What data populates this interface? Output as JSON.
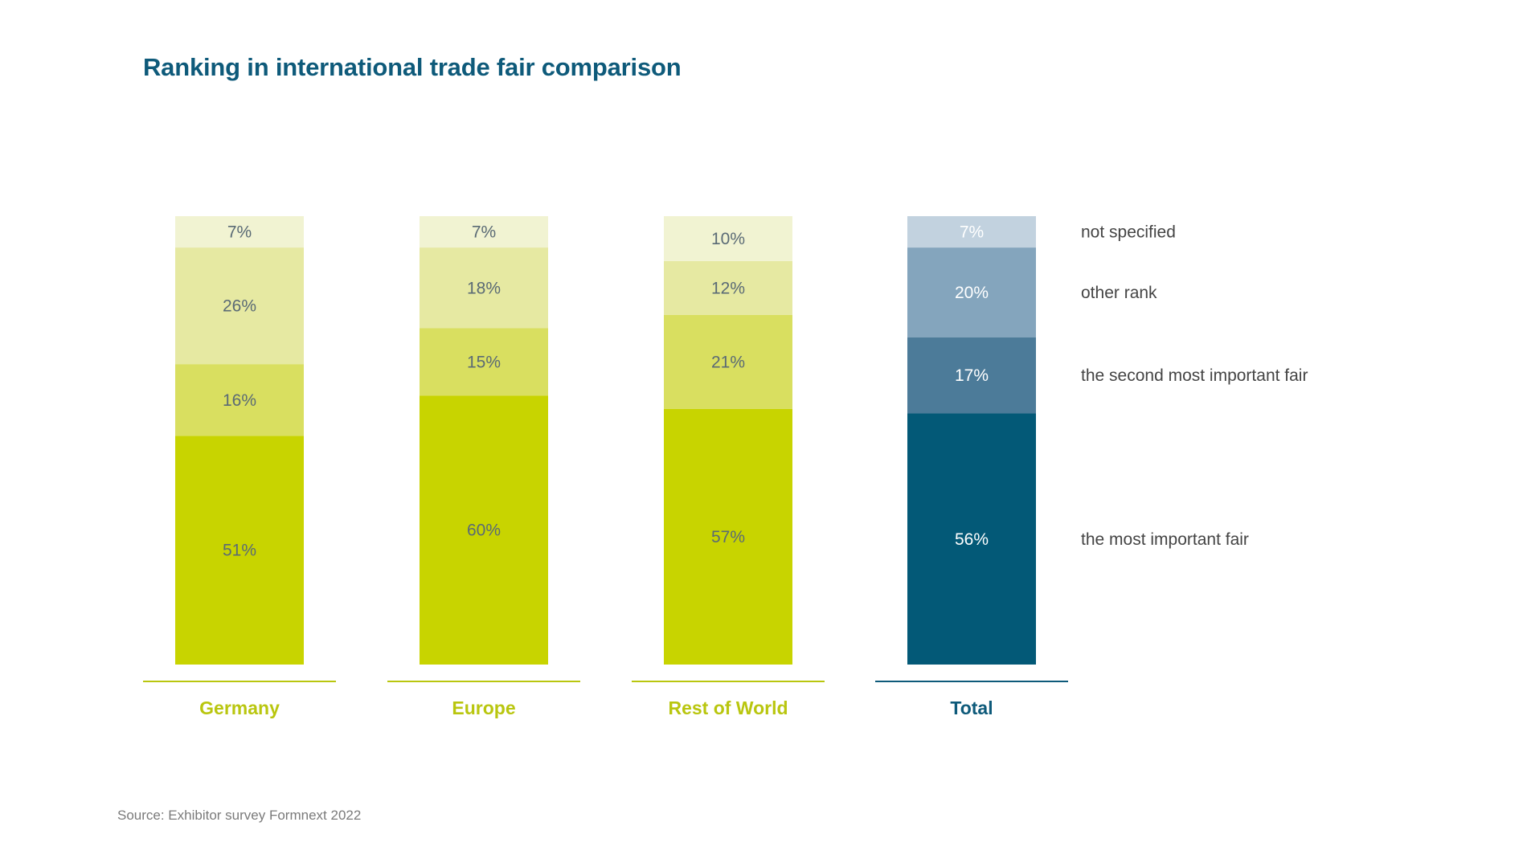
{
  "title": "Ranking in international trade fair comparison",
  "source": "Source: Exhibitor survey Formnext 2022",
  "chart_data": {
    "type": "bar",
    "stacked": true,
    "unit": "%",
    "categories": [
      "Germany",
      "Europe",
      "Rest of World",
      "Total"
    ],
    "series": [
      {
        "name": "the most important fair",
        "values": [
          51,
          60,
          57,
          56
        ]
      },
      {
        "name": "the second most important fair",
        "values": [
          16,
          15,
          21,
          17
        ]
      },
      {
        "name": "other rank",
        "values": [
          26,
          18,
          12,
          20
        ]
      },
      {
        "name": "not specified",
        "values": [
          7,
          7,
          10,
          7
        ]
      }
    ],
    "value_labels": [
      [
        "51%",
        "60%",
        "57%",
        "56%"
      ],
      [
        "16%",
        "15%",
        "21%",
        "17%"
      ],
      [
        "26%",
        "18%",
        "12%",
        "20%"
      ],
      [
        "7%",
        "7%",
        "10%",
        "7%"
      ]
    ],
    "colors": {
      "Germany": [
        "#c8d400",
        "#d9df60",
        "#e6e9a2",
        "#f1f3d2"
      ],
      "Europe": [
        "#c8d400",
        "#d9df60",
        "#e6e9a2",
        "#f1f3d2"
      ],
      "Rest of World": [
        "#c8d400",
        "#d9df60",
        "#e6e9a2",
        "#f1f3d2"
      ],
      "Total": [
        "#035977",
        "#4c7b99",
        "#84a5bd",
        "#c2d2df"
      ]
    },
    "category_label_colors": [
      "#b9c60f",
      "#b9c60f",
      "#b9c60f",
      "#0e5a7a"
    ],
    "label_text_colors": {
      "Germany": [
        "#5a6a75",
        "#5a6a75",
        "#5a6a75",
        "#5a6a75"
      ],
      "Europe": [
        "#5a6a75",
        "#5a6a75",
        "#5a6a75",
        "#5a6a75"
      ],
      "Rest of World": [
        "#5a6a75",
        "#5a6a75",
        "#5a6a75",
        "#5a6a75"
      ],
      "Total": [
        "#ffffff",
        "#ffffff",
        "#ffffff",
        "#ffffff"
      ]
    },
    "legend_placement": "right",
    "grid": false,
    "ylim": [
      0,
      100
    ]
  }
}
